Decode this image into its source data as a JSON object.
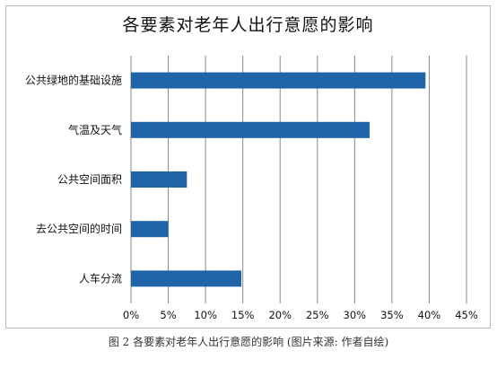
{
  "chart_data": {
    "type": "bar",
    "orientation": "horizontal",
    "title": "各要素对老年人出行意愿的影响",
    "categories": [
      "公共绿地的基础设施",
      "气温及天气",
      "公共空间面积",
      "去公共空间的时间",
      "人车分流"
    ],
    "values": [
      39.5,
      32,
      7.5,
      5,
      14.8
    ],
    "xlim": [
      0,
      45
    ],
    "xticks": [
      "0%",
      "5%",
      "10%",
      "15%",
      "20%",
      "25%",
      "30%",
      "35%",
      "40%",
      "45%"
    ],
    "grid": "vertical",
    "bar_color": "#1f63a8",
    "xlabel": "",
    "ylabel": ""
  },
  "caption": "图 2 各要素对老年人出行意愿的影响 (图片来源: 作者自绘)"
}
